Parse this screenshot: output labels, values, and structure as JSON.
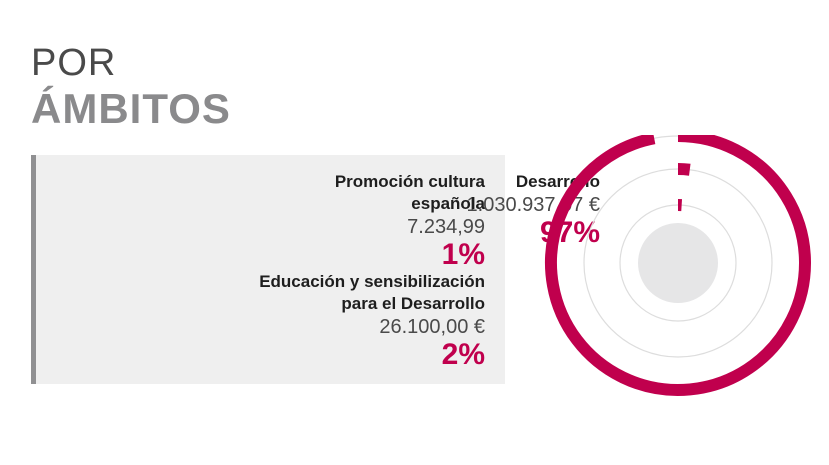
{
  "header": {
    "line1": "POR",
    "line2": "ÁMBITOS"
  },
  "entries": [
    {
      "name": "Desarrollo",
      "amount": "1.030.937,07 €",
      "pct": "97%"
    },
    {
      "name": "Promoción cultura española",
      "amount": "7.234,99",
      "pct": "1%"
    },
    {
      "name": "Educación y sensibilización para el Desarrollo",
      "amount": "26.100,00 €",
      "pct": "2%"
    }
  ],
  "colors": {
    "accent": "#c0004d",
    "track": "#dddddd",
    "center": "#e6e6e7",
    "panel": "#efefef",
    "panel_border": "#909092"
  },
  "chart_data": {
    "type": "radial-bar",
    "categories": [
      "Desarrollo",
      "Educación y sensibilización para el Desarrollo",
      "Promoción cultura española"
    ],
    "values": [
      97,
      2,
      1
    ],
    "labels": [
      "97%",
      "2%",
      "1%"
    ],
    "amounts": [
      1030937.07,
      26100.0,
      7234.99
    ]
  }
}
